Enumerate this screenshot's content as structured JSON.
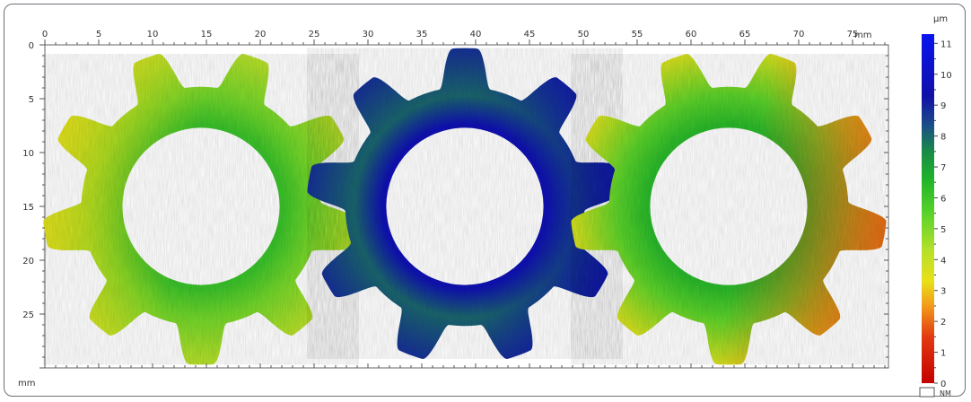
{
  "chart_data": {
    "type": "heatmap",
    "title": "",
    "x_axis": {
      "range_mm": [
        0,
        78
      ],
      "ticks": [
        0,
        5,
        10,
        15,
        20,
        25,
        30,
        35,
        40,
        45,
        50,
        55,
        60,
        65,
        70,
        75
      ],
      "unit_label": "mm",
      "position": "top"
    },
    "y_axis": {
      "range_mm": [
        0,
        30
      ],
      "ticks": [
        0,
        5,
        10,
        15,
        20,
        25
      ],
      "unit_label": "mm",
      "direction": "top-to-bottom"
    },
    "colorbar": {
      "unit": "µm",
      "range": [
        0,
        11.3
      ],
      "ticks": [
        0,
        1,
        2,
        3,
        4,
        5,
        6,
        7,
        8,
        9,
        10,
        11
      ],
      "stops": [
        {
          "value": 0,
          "color": "#c40000"
        },
        {
          "value": 1.5,
          "color": "#e23a10"
        },
        {
          "value": 2.5,
          "color": "#f29a1a"
        },
        {
          "value": 3.3,
          "color": "#e8e018"
        },
        {
          "value": 4.3,
          "color": "#b5e02a"
        },
        {
          "value": 5.5,
          "color": "#5ad22a"
        },
        {
          "value": 6.6,
          "color": "#1fb42a"
        },
        {
          "value": 7.5,
          "color": "#1a8a48"
        },
        {
          "value": 8.4,
          "color": "#1a4a8a"
        },
        {
          "value": 9.3,
          "color": "#1010a8"
        },
        {
          "value": 11.3,
          "color": "#0a14f0"
        }
      ],
      "nm_label": "NM"
    },
    "gears": [
      {
        "center_mm": [
          14.5,
          15.0
        ],
        "bore_radius_mm": 7.3,
        "root_radius_mm": 11.1,
        "tip_radius_mm": 14.7,
        "teeth": 9,
        "phase_deg": -90,
        "base_height_um": 5.2,
        "hot_zone": {
          "angle_deg": 190,
          "height_um": 3.3
        }
      },
      {
        "center_mm": [
          39.0,
          15.0
        ],
        "bore_radius_mm": 7.3,
        "root_radius_mm": 11.1,
        "tip_radius_mm": 14.7,
        "teeth": 9,
        "phase_deg": -70,
        "base_height_um": 8.0,
        "hot_zone": {
          "angle_deg": 0,
          "height_um": 9.6
        }
      },
      {
        "center_mm": [
          63.5,
          15.0
        ],
        "bore_radius_mm": 7.3,
        "root_radius_mm": 11.1,
        "tip_radius_mm": 14.7,
        "teeth": 9,
        "phase_deg": -90,
        "base_height_um": 5.5,
        "hot_zone": {
          "angle_deg": 10,
          "height_um": 1.8
        }
      }
    ]
  }
}
